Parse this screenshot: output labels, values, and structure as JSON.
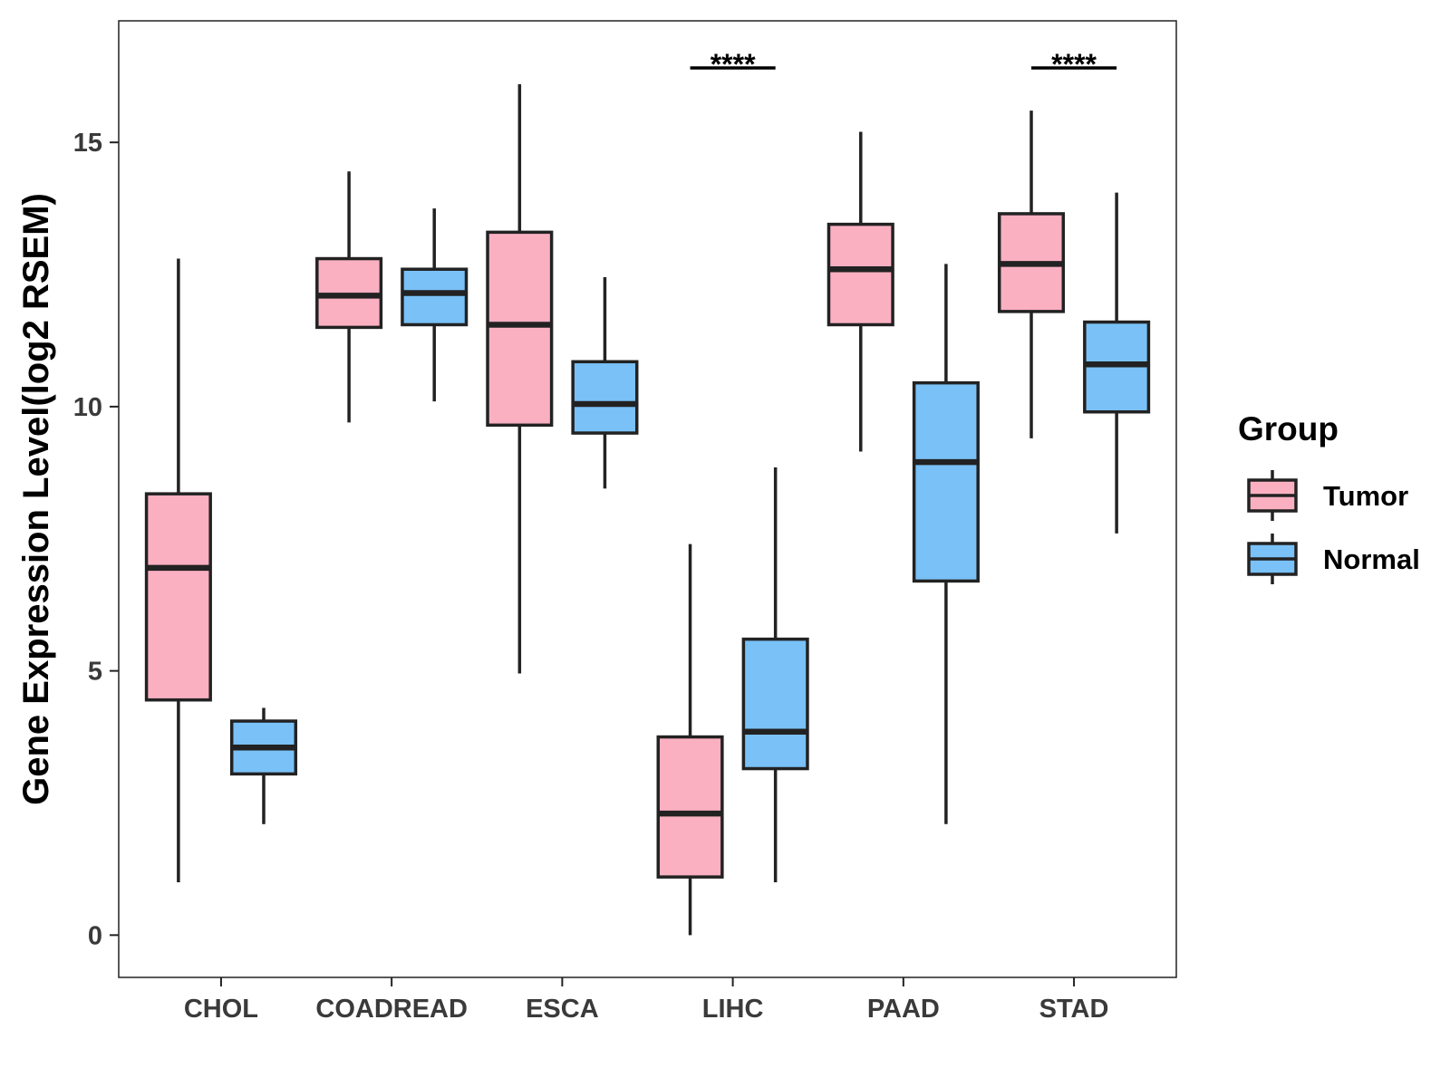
{
  "chart_data": {
    "type": "boxplot",
    "ylabel": "Gene Expression Level(log2 RSEM)",
    "xlabel": "",
    "ylim": [
      -0.8,
      17.3
    ],
    "yticks": [
      0,
      5,
      10,
      15
    ],
    "categories": [
      "CHOL",
      "COADREAD",
      "ESCA",
      "LIHC",
      "PAAD",
      "STAD"
    ],
    "legend": {
      "title": "Group",
      "position": "right",
      "entries": [
        {
          "name": "Tumor",
          "color": "#FBB0C2"
        },
        {
          "name": "Normal",
          "color": "#79C1F7"
        }
      ]
    },
    "series": [
      {
        "name": "Tumor",
        "color": "#FBB0C2",
        "boxes": [
          {
            "category": "CHOL",
            "min": 1.0,
            "q1": 4.45,
            "median": 6.95,
            "q3": 8.35,
            "max": 12.8
          },
          {
            "category": "COADREAD",
            "min": 9.7,
            "q1": 11.5,
            "median": 12.1,
            "q3": 12.8,
            "max": 14.45
          },
          {
            "category": "ESCA",
            "min": 4.95,
            "q1": 9.65,
            "median": 11.55,
            "q3": 13.3,
            "max": 16.1
          },
          {
            "category": "LIHC",
            "min": 0.0,
            "q1": 1.1,
            "median": 2.3,
            "q3": 3.75,
            "max": 7.4
          },
          {
            "category": "PAAD",
            "min": 9.15,
            "q1": 11.55,
            "median": 12.6,
            "q3": 13.45,
            "max": 15.2
          },
          {
            "category": "STAD",
            "min": 9.4,
            "q1": 11.8,
            "median": 12.7,
            "q3": 13.65,
            "max": 15.6
          }
        ]
      },
      {
        "name": "Normal",
        "color": "#79C1F7",
        "boxes": [
          {
            "category": "CHOL",
            "min": 2.1,
            "q1": 3.05,
            "median": 3.55,
            "q3": 4.05,
            "max": 4.3
          },
          {
            "category": "COADREAD",
            "min": 10.1,
            "q1": 11.55,
            "median": 12.15,
            "q3": 12.6,
            "max": 13.75
          },
          {
            "category": "ESCA",
            "min": 8.45,
            "q1": 9.5,
            "median": 10.05,
            "q3": 10.85,
            "max": 12.45
          },
          {
            "category": "LIHC",
            "min": 1.0,
            "q1": 3.15,
            "median": 3.85,
            "q3": 5.6,
            "max": 8.85
          },
          {
            "category": "PAAD",
            "min": 2.1,
            "q1": 6.7,
            "median": 8.95,
            "q3": 10.45,
            "max": 12.7
          },
          {
            "category": "STAD",
            "min": 7.6,
            "q1": 9.9,
            "median": 10.8,
            "q3": 11.6,
            "max": 14.05
          }
        ]
      }
    ],
    "annotations": [
      {
        "category": "LIHC",
        "label": "****"
      },
      {
        "category": "STAD",
        "label": "****"
      }
    ]
  }
}
